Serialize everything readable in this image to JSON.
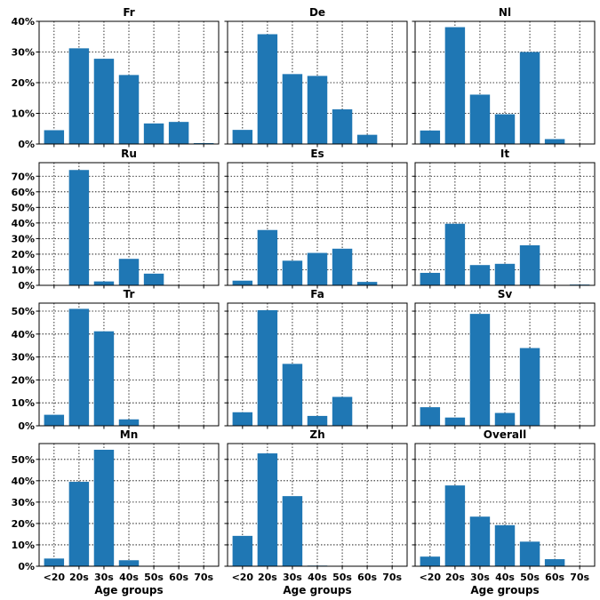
{
  "colors": {
    "bar": "#1f77b4",
    "grid": "#000000",
    "frame": "#000000"
  },
  "chart_data": [
    {
      "type": "bar",
      "title": "Fr",
      "categories": [
        "<20",
        "20s",
        "30s",
        "40s",
        "50s",
        "60s",
        "70s"
      ],
      "values": [
        4.5,
        31.2,
        27.8,
        22.5,
        6.7,
        7.2,
        0.3
      ],
      "ylim": [
        0,
        40
      ],
      "yticks": [
        "0%",
        "10%",
        "20%",
        "30%",
        "40%"
      ],
      "xlabel": "",
      "grid": true
    },
    {
      "type": "bar",
      "title": "De",
      "categories": [
        "<20",
        "20s",
        "30s",
        "40s",
        "50s",
        "60s",
        "70s"
      ],
      "values": [
        4.6,
        35.8,
        22.8,
        22.2,
        11.3,
        3.0,
        0
      ],
      "ylim": [
        0,
        40
      ],
      "yticks": [],
      "xlabel": "",
      "grid": true
    },
    {
      "type": "bar",
      "title": "Nl",
      "categories": [
        "<20",
        "20s",
        "30s",
        "40s",
        "50s",
        "60s",
        "70s"
      ],
      "values": [
        4.4,
        38.1,
        16.1,
        9.7,
        30.0,
        1.6,
        0
      ],
      "ylim": [
        0,
        40
      ],
      "yticks": [],
      "xlabel": "",
      "grid": true
    },
    {
      "type": "bar",
      "title": "Ru",
      "categories": [
        "<20",
        "20s",
        "30s",
        "40s",
        "50s",
        "60s",
        "70s"
      ],
      "values": [
        0,
        74.0,
        2.5,
        17.0,
        7.5,
        0,
        0
      ],
      "ylim": [
        0,
        78.7
      ],
      "yticks": [
        "0%",
        "10%",
        "20%",
        "30%",
        "40%",
        "50%",
        "60%",
        "70%"
      ],
      "xlabel": "",
      "grid": true
    },
    {
      "type": "bar",
      "title": "Es",
      "categories": [
        "<20",
        "20s",
        "30s",
        "40s",
        "50s",
        "60s",
        "70s"
      ],
      "values": [
        3.0,
        35.5,
        15.8,
        20.8,
        23.5,
        2.2,
        0
      ],
      "ylim": [
        0,
        78.7
      ],
      "yticks": [],
      "xlabel": "",
      "grid": true
    },
    {
      "type": "bar",
      "title": "It",
      "categories": [
        "<20",
        "20s",
        "30s",
        "40s",
        "50s",
        "60s",
        "70s"
      ],
      "values": [
        8.0,
        39.5,
        13.0,
        13.8,
        25.7,
        0.2,
        0.5
      ],
      "ylim": [
        0,
        78.7
      ],
      "yticks": [],
      "xlabel": "",
      "grid": true
    },
    {
      "type": "bar",
      "title": "Tr",
      "categories": [
        "<20",
        "20s",
        "30s",
        "40s",
        "50s",
        "60s",
        "70s"
      ],
      "values": [
        4.8,
        51.0,
        41.2,
        2.8,
        0,
        0,
        0
      ],
      "ylim": [
        0,
        53.5
      ],
      "yticks": [
        "0%",
        "10%",
        "20%",
        "30%",
        "40%",
        "50%"
      ],
      "xlabel": "",
      "grid": true
    },
    {
      "type": "bar",
      "title": "Fa",
      "categories": [
        "<20",
        "20s",
        "30s",
        "40s",
        "50s",
        "60s",
        "70s"
      ],
      "values": [
        5.9,
        50.4,
        27.0,
        4.3,
        12.6,
        0,
        0
      ],
      "ylim": [
        0,
        53.5
      ],
      "yticks": [],
      "xlabel": "",
      "grid": true
    },
    {
      "type": "bar",
      "title": "Sv",
      "categories": [
        "<20",
        "20s",
        "30s",
        "40s",
        "50s",
        "60s",
        "70s"
      ],
      "values": [
        8.1,
        3.6,
        48.8,
        5.6,
        33.9,
        0,
        0
      ],
      "ylim": [
        0,
        53.5
      ],
      "yticks": [],
      "xlabel": "",
      "grid": true
    },
    {
      "type": "bar",
      "title": "Mn",
      "categories": [
        "<20",
        "20s",
        "30s",
        "40s",
        "50s",
        "60s",
        "70s"
      ],
      "values": [
        3.6,
        39.5,
        54.5,
        2.8,
        0,
        0,
        0
      ],
      "ylim": [
        0,
        57.4
      ],
      "yticks": [
        "0%",
        "10%",
        "20%",
        "30%",
        "40%",
        "50%"
      ],
      "xticks": [
        "<20",
        "20s",
        "30s",
        "40s",
        "50s",
        "60s",
        "70s"
      ],
      "xlabel": "Age groups",
      "grid": true
    },
    {
      "type": "bar",
      "title": "Zh",
      "categories": [
        "<20",
        "20s",
        "30s",
        "40s",
        "50s",
        "60s",
        "70s"
      ],
      "values": [
        14.2,
        52.8,
        32.8,
        0.3,
        0,
        0,
        0
      ],
      "ylim": [
        0,
        57.4
      ],
      "yticks": [],
      "xticks": [
        "<20",
        "20s",
        "30s",
        "40s",
        "50s",
        "60s",
        "70s"
      ],
      "xlabel": "Age groups",
      "grid": true
    },
    {
      "type": "bar",
      "title": "Overall",
      "categories": [
        "<20",
        "20s",
        "30s",
        "40s",
        "50s",
        "60s",
        "70s"
      ],
      "values": [
        4.5,
        37.8,
        23.2,
        19.2,
        11.5,
        3.3,
        0.1
      ],
      "ylim": [
        0,
        57.4
      ],
      "yticks": [],
      "xticks": [
        "<20",
        "20s",
        "30s",
        "40s",
        "50s",
        "60s",
        "70s"
      ],
      "xlabel": "Age groups",
      "grid": true
    }
  ]
}
